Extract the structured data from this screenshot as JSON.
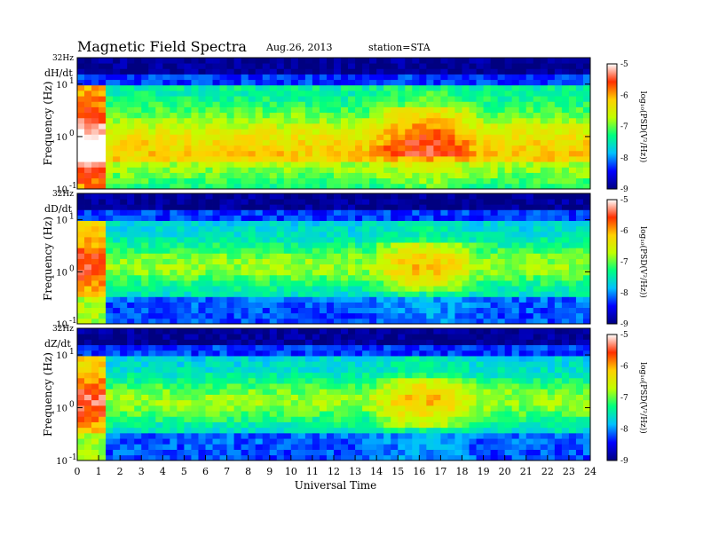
{
  "header": {
    "title": "Magnetic Field Spectra",
    "date": "Aug.26, 2013",
    "station": "station=STA"
  },
  "chart_data": {
    "type": "heatmap",
    "x_axis": {
      "label": "Universal Time",
      "range": [
        0,
        24
      ],
      "ticks": [
        "0",
        "1",
        "2",
        "3",
        "4",
        "5",
        "6",
        "7",
        "8",
        "9",
        "10",
        "11",
        "12",
        "13",
        "14",
        "15",
        "16",
        "17",
        "18",
        "19",
        "20",
        "21",
        "22",
        "23",
        "24"
      ]
    },
    "y_axis": {
      "label": "Frequency (Hz)",
      "scale": "log",
      "range": [
        0.1,
        32
      ],
      "tick_labels": [
        {
          "value": 0.1,
          "base": "10",
          "exp": "-1"
        },
        {
          "value": 1,
          "base": "10",
          "exp": "0"
        },
        {
          "value": 10,
          "base": "10",
          "exp": "1"
        }
      ],
      "top_label": "32Hz"
    },
    "colorbar": {
      "label": "log₁₀(PSD(V²/Hz))",
      "range": [
        -9,
        -5
      ],
      "ticks": [
        "-5",
        "-6",
        "-7",
        "-8",
        "-9"
      ],
      "colors": [
        "#000080",
        "#0000ff",
        "#00c0ff",
        "#00ff80",
        "#c0ff00",
        "#ffd000",
        "#ff3000",
        "#ffffff"
      ]
    },
    "panels": [
      {
        "component": "dH/dt",
        "level": "high"
      },
      {
        "component": "dD/dt",
        "level": "low"
      },
      {
        "component": "dZ/dt",
        "level": "low"
      }
    ]
  }
}
